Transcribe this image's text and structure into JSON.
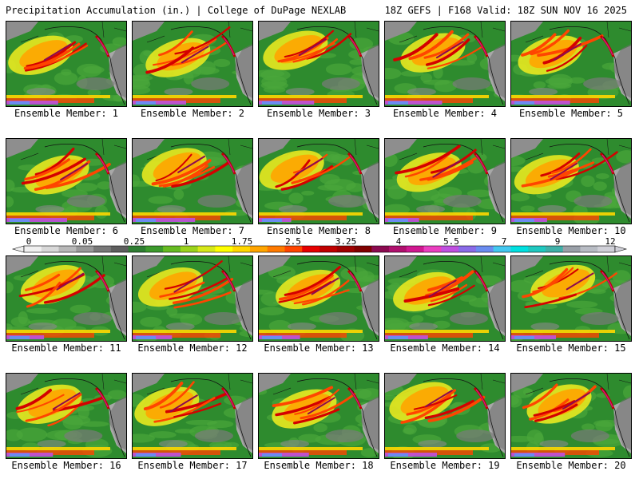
{
  "header": {
    "left": "Precipitation Accumulation (in.) | College of DuPage NEXLAB",
    "right": "18Z GEFS | F168 Valid: 18Z SUN NOV 16 2025"
  },
  "colorbar": {
    "labels": [
      "0",
      "0.05",
      "0.25",
      "1",
      "1.75",
      "2.5",
      "3.25",
      "4",
      "5.5",
      "7",
      "9",
      "12"
    ],
    "colors": [
      "#f0f0f0",
      "#d8d8d8",
      "#b8b8b8",
      "#989898",
      "#787878",
      "#5e5e5e",
      "#2e7d32",
      "#3c9a2c",
      "#66bb22",
      "#9bd31c",
      "#d6e81a",
      "#ffff00",
      "#ffd700",
      "#ffa500",
      "#ff7a00",
      "#ff4500",
      "#e60000",
      "#c00000",
      "#a00000",
      "#800000",
      "#8b0a50",
      "#b0106e",
      "#d01890",
      "#ea3fbf",
      "#c050e0",
      "#8a6be8",
      "#6a8cf0",
      "#44c8f0",
      "#00e0e0",
      "#20c8c0",
      "#40b0a8",
      "#9aa0a8",
      "#b8bcc4",
      "#d0d0d8"
    ]
  },
  "panels": [
    {
      "caption": "Ensemble Member: 1"
    },
    {
      "caption": "Ensemble Member: 2"
    },
    {
      "caption": "Ensemble Member: 3"
    },
    {
      "caption": "Ensemble Member: 4"
    },
    {
      "caption": "Ensemble Member: 5"
    },
    {
      "caption": "Ensemble Member: 6"
    },
    {
      "caption": "Ensemble Member: 7"
    },
    {
      "caption": "Ensemble Member: 8"
    },
    {
      "caption": "Ensemble Member: 9"
    },
    {
      "caption": "Ensemble Member: 10"
    },
    {
      "caption": "Ensemble Member: 11"
    },
    {
      "caption": "Ensemble Member: 12"
    },
    {
      "caption": "Ensemble Member: 13"
    },
    {
      "caption": "Ensemble Member: 14"
    },
    {
      "caption": "Ensemble Member: 15"
    },
    {
      "caption": "Ensemble Member: 16"
    },
    {
      "caption": "Ensemble Member: 17"
    },
    {
      "caption": "Ensemble Member: 18"
    },
    {
      "caption": "Ensemble Member: 19"
    },
    {
      "caption": "Ensemble Member: 20"
    }
  ]
}
